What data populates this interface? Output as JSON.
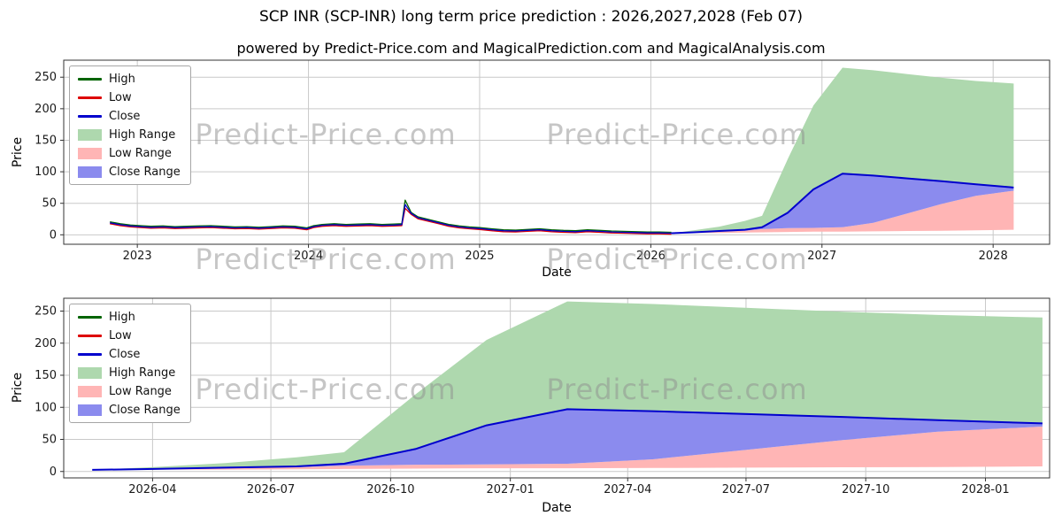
{
  "header": {
    "title": "SCP INR (SCP-INR) long term price prediction : 2026,2027,2028 (Feb 07)",
    "subtitle": "powered by Predict-Price.com and MagicalPrediction.com and MagicalAnalysis.com"
  },
  "watermark": {
    "text": "Predict-Price.com"
  },
  "colors": {
    "high": "#006400",
    "low": "#dd0000",
    "close": "#0000cd",
    "high_range": "#aed8ae",
    "low_range": "#ffb5b5",
    "close_range": "#8b8bee",
    "grid": "#c9c9c9",
    "spine": "#333333"
  },
  "legend": {
    "items": [
      {
        "label": "High",
        "type": "line",
        "color_key": "high"
      },
      {
        "label": "Low",
        "type": "line",
        "color_key": "low"
      },
      {
        "label": "Close",
        "type": "line",
        "color_key": "close"
      },
      {
        "label": "High Range",
        "type": "patch",
        "color_key": "high_range"
      },
      {
        "label": "Low Range",
        "type": "patch",
        "color_key": "low_range"
      },
      {
        "label": "Close Range",
        "type": "patch",
        "color_key": "close_range"
      }
    ]
  },
  "chart_data": [
    {
      "type": "line",
      "name": "historical-and-forecast",
      "xlabel": "Date",
      "ylabel": "Price",
      "xlim": [
        2022.57,
        2028.33
      ],
      "ylim": [
        -15,
        277
      ],
      "yticks": [
        0,
        50,
        100,
        150,
        200,
        250
      ],
      "xticks": [
        {
          "v": 2023,
          "label": "2023"
        },
        {
          "v": 2024,
          "label": "2024"
        },
        {
          "v": 2025,
          "label": "2025"
        },
        {
          "v": 2026,
          "label": "2026"
        },
        {
          "v": 2027,
          "label": "2027"
        },
        {
          "v": 2028,
          "label": "2028"
        }
      ],
      "historical": {
        "x": [
          2022.84,
          2022.9,
          2022.96,
          2023.02,
          2023.08,
          2023.15,
          2023.22,
          2023.29,
          2023.36,
          2023.43,
          2023.5,
          2023.57,
          2023.64,
          2023.71,
          2023.78,
          2023.85,
          2023.92,
          2023.99,
          2024.03,
          2024.08,
          2024.15,
          2024.22,
          2024.29,
          2024.36,
          2024.43,
          2024.5,
          2024.545,
          2024.565,
          2024.6,
          2024.64,
          2024.7,
          2024.76,
          2024.82,
          2024.88,
          2024.94,
          2025.0,
          2025.07,
          2025.14,
          2025.21,
          2025.28,
          2025.35,
          2025.42,
          2025.49,
          2025.56,
          2025.63,
          2025.7,
          2025.77,
          2025.84,
          2025.91,
          2025.98,
          2026.05,
          2026.12
        ],
        "high": [
          20.5,
          17.5,
          15.5,
          14.5,
          13.5,
          14,
          13,
          13.5,
          14,
          14.5,
          13.5,
          12.5,
          13,
          12,
          13,
          14,
          13.5,
          11,
          14.5,
          16.5,
          17.5,
          16.5,
          17,
          17.5,
          16.5,
          17,
          17.5,
          55,
          35.5,
          28.5,
          24.5,
          20.5,
          16.5,
          14,
          12.5,
          11.5,
          9.5,
          8,
          7.5,
          8.5,
          9.5,
          8,
          7,
          6.5,
          8,
          7,
          6,
          5.5,
          5,
          4.5,
          4.5,
          4
        ],
        "low": [
          17.5,
          14.5,
          12.5,
          11.5,
          10.5,
          11,
          10,
          10.5,
          11,
          11.5,
          10.5,
          9.5,
          10,
          9,
          10,
          11,
          10.5,
          8,
          11.5,
          13.5,
          14.5,
          13.5,
          14,
          14.5,
          13.5,
          14,
          14.5,
          42,
          32.5,
          25.5,
          21.5,
          17.5,
          13.5,
          11,
          9.5,
          8.5,
          6.5,
          5,
          4.5,
          5.5,
          6.5,
          5,
          4,
          3.5,
          5,
          4,
          3,
          2.5,
          2,
          1.5,
          1.5,
          1
        ],
        "close": [
          19,
          16,
          14,
          13,
          12,
          12.5,
          11.5,
          12,
          12.5,
          13,
          12,
          11,
          11.5,
          10.5,
          11.5,
          12.5,
          12,
          9.5,
          13,
          15,
          16,
          15,
          15.5,
          16,
          15,
          15.5,
          16,
          48,
          34,
          27,
          23,
          19,
          15,
          12.5,
          11,
          10,
          8,
          6.5,
          6,
          7,
          8,
          6.5,
          5.5,
          5,
          6.5,
          5.5,
          4.5,
          4,
          3.5,
          3,
          3,
          2.5
        ],
        "close_last": 2.5
      },
      "forecast": {
        "x": [
          2026.12,
          2026.25,
          2026.4,
          2026.55,
          2026.65,
          2026.8,
          2026.95,
          2027.12,
          2027.3,
          2027.5,
          2027.7,
          2027.9,
          2028.12
        ],
        "close": [
          2.5,
          4,
          6,
          8,
          12,
          35,
          72,
          97,
          94,
          89.5,
          85,
          80,
          75
        ],
        "high_upper": [
          2.5,
          7,
          13,
          22,
          30,
          120,
          205,
          265,
          261,
          255,
          249,
          244,
          240
        ],
        "low_upper": [
          2.5,
          3.5,
          5,
          6.5,
          9,
          10.5,
          11,
          12,
          19,
          34,
          49,
          62,
          70
        ],
        "low_lower": [
          2.5,
          3,
          3,
          3.5,
          4,
          4.5,
          5,
          5,
          5.5,
          6,
          6.5,
          7,
          8
        ]
      }
    },
    {
      "type": "line",
      "name": "forecast-detail",
      "xlabel": "Date",
      "ylabel": "Price",
      "xlim": [
        2026.06,
        2028.135
      ],
      "ylim": [
        -10,
        270
      ],
      "yticks": [
        0,
        50,
        100,
        150,
        200,
        250
      ],
      "xticks": [
        {
          "v": 2026.247,
          "label": "2026-04"
        },
        {
          "v": 2026.496,
          "label": "2026-07"
        },
        {
          "v": 2026.748,
          "label": "2026-10"
        },
        {
          "v": 2027.0,
          "label": "2027-01"
        },
        {
          "v": 2027.247,
          "label": "2027-04"
        },
        {
          "v": 2027.496,
          "label": "2027-07"
        },
        {
          "v": 2027.748,
          "label": "2027-10"
        },
        {
          "v": 2028.0,
          "label": "2028-01"
        }
      ],
      "forecast": {
        "x": [
          2026.12,
          2026.25,
          2026.4,
          2026.55,
          2026.65,
          2026.8,
          2026.95,
          2027.12,
          2027.3,
          2027.5,
          2027.7,
          2027.9,
          2028.12
        ],
        "close": [
          2.5,
          4,
          6,
          8,
          12,
          35,
          72,
          97,
          94,
          89.5,
          85,
          80,
          75
        ],
        "high_upper": [
          2.5,
          7,
          13,
          22,
          30,
          120,
          205,
          265,
          261,
          255,
          249,
          244,
          240
        ],
        "low_upper": [
          2.5,
          3.5,
          5,
          6.5,
          9,
          10.5,
          11,
          12,
          19,
          34,
          49,
          62,
          70
        ],
        "low_lower": [
          2.5,
          3,
          3,
          3.5,
          4,
          4.5,
          5,
          5,
          5.5,
          6,
          6.5,
          7,
          8
        ]
      }
    }
  ]
}
